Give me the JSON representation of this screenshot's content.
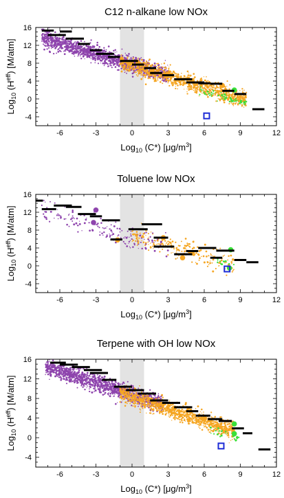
{
  "chart_data": [
    {
      "type": "scatter",
      "title": "C12 n-alkane low NOx",
      "xlabel": "Log10 (C*) [μg/m3]",
      "ylabel": "Log10 (Heff) [M/atm]",
      "xlim": [
        -8,
        12
      ],
      "ylim": [
        -6,
        16
      ],
      "xticks": [
        -6,
        -3,
        0,
        3,
        6,
        9,
        12
      ],
      "yticks": [
        -4,
        0,
        4,
        8,
        12,
        16
      ],
      "shaded_band": [
        -1,
        1
      ],
      "colors": {
        "purple": "#8e44ad",
        "orange": "#f5a623",
        "green": "#39e039",
        "black": "#000000",
        "marker": "#1c2bd6",
        "band": "#e3e3e3"
      },
      "clouds": [
        {
          "color": "purple",
          "count": 1500,
          "seed": 11,
          "x_range": [
            -7.5,
            3
          ],
          "y_at_x0": 7.6,
          "slope": -0.82,
          "spread": 1.6
        },
        {
          "color": "orange",
          "count": 1100,
          "seed": 12,
          "x_range": [
            -1,
            9.5
          ],
          "y_at_x0": 7.5,
          "slope": -0.82,
          "spread": 1.7
        },
        {
          "color": "green",
          "count": 70,
          "seed": 13,
          "x_range": [
            5.5,
            9.5
          ],
          "y_at_x0": 6.8,
          "slope": -0.85,
          "spread": 0.9
        }
      ],
      "large_points": [
        {
          "x": -2,
          "y": 9.5,
          "color": "purple"
        },
        {
          "x": 0.5,
          "y": 8,
          "color": "orange"
        },
        {
          "x": 3,
          "y": 5.5,
          "color": "orange"
        },
        {
          "x": 5,
          "y": 4,
          "color": "orange"
        },
        {
          "x": 7.5,
          "y": 3,
          "color": "orange"
        },
        {
          "x": 8.5,
          "y": 2,
          "color": "green"
        }
      ],
      "black_steps": [
        {
          "x0": -7.5,
          "x1": -6.5,
          "y": 15.3
        },
        {
          "x0": -7,
          "x1": -5.5,
          "y": 14.3
        },
        {
          "x0": -6,
          "x1": -5,
          "y": 15.1
        },
        {
          "x0": -5.5,
          "x1": -4,
          "y": 13.5
        },
        {
          "x0": -4.5,
          "x1": -3.5,
          "y": 12.3
        },
        {
          "x0": -3.5,
          "x1": -2.5,
          "y": 10.9
        },
        {
          "x0": -3,
          "x1": -1.5,
          "y": 10.1
        },
        {
          "x0": -2,
          "x1": -1,
          "y": 9.4
        },
        {
          "x0": -1,
          "x1": 0.5,
          "y": 8.5
        },
        {
          "x0": 0,
          "x1": 1,
          "y": 7.7
        },
        {
          "x0": 1,
          "x1": 2,
          "y": 6.9
        },
        {
          "x0": 1.5,
          "x1": 2.5,
          "y": 5.8
        },
        {
          "x0": 2.5,
          "x1": 3.5,
          "y": 5.3
        },
        {
          "x0": 3.5,
          "x1": 5,
          "y": 4.4
        },
        {
          "x0": 4.5,
          "x1": 6,
          "y": 3.7
        },
        {
          "x0": 5.5,
          "x1": 6.5,
          "y": 3.5
        },
        {
          "x0": 6.5,
          "x1": 7.5,
          "y": 3.4
        },
        {
          "x0": 7.5,
          "x1": 8.5,
          "y": 1.8
        },
        {
          "x0": 8.5,
          "x1": 9.5,
          "y": 1.1
        },
        {
          "x0": 10,
          "x1": 11,
          "y": -2.3
        }
      ],
      "square_marker": {
        "x": 6.2,
        "y": -3.8
      }
    },
    {
      "type": "scatter",
      "title": "Toluene low NOx",
      "xlabel": "Log10 (C*) [μg/m3]",
      "ylabel": "Log10 (Heff) [M/atm]",
      "xlim": [
        -8,
        12
      ],
      "ylim": [
        -6,
        16
      ],
      "xticks": [
        -6,
        -3,
        0,
        3,
        6,
        9,
        12
      ],
      "yticks": [
        -4,
        0,
        4,
        8,
        12,
        16
      ],
      "shaded_band": [
        -1,
        1
      ],
      "clouds": [
        {
          "color": "purple",
          "count": 180,
          "seed": 21,
          "x_range": [
            -7.5,
            3
          ],
          "y_at_x0": 6.5,
          "slope": -0.8,
          "spread": 2.2
        },
        {
          "color": "orange",
          "count": 220,
          "seed": 22,
          "x_range": [
            0,
            8.5
          ],
          "y_at_x0": 6.8,
          "slope": -0.8,
          "spread": 1.9
        },
        {
          "color": "green",
          "count": 12,
          "seed": 23,
          "x_range": [
            7,
            8.5
          ],
          "y_at_x0": 6.5,
          "slope": -0.75,
          "spread": 0.7
        }
      ],
      "large_points": [
        {
          "x": -3,
          "y": 12.5,
          "color": "purple"
        },
        {
          "x": -3.2,
          "y": 9.7,
          "color": "purple"
        },
        {
          "x": -1.2,
          "y": 5.8,
          "color": "orange"
        },
        {
          "x": 2.6,
          "y": 6.3,
          "color": "orange"
        },
        {
          "x": 4.2,
          "y": 1.8,
          "color": "orange"
        },
        {
          "x": 5,
          "y": 2.9,
          "color": "orange"
        },
        {
          "x": 8.2,
          "y": 3.6,
          "color": "green"
        },
        {
          "x": 8.1,
          "y": -0.5,
          "color": "green"
        }
      ],
      "black_steps": [
        {
          "x0": -8,
          "x1": -7.4,
          "y": 14.6
        },
        {
          "x0": -7.5,
          "x1": -6.3,
          "y": 12.7
        },
        {
          "x0": -6.5,
          "x1": -5,
          "y": 13.5
        },
        {
          "x0": -5.5,
          "x1": -4.2,
          "y": 13.2
        },
        {
          "x0": -4.5,
          "x1": -3,
          "y": 11.6
        },
        {
          "x0": -3.5,
          "x1": -2.5,
          "y": 11.1
        },
        {
          "x0": -2.5,
          "x1": -1,
          "y": 10.2
        },
        {
          "x0": -1.8,
          "x1": -0.8,
          "y": 5.9
        },
        {
          "x0": -0.3,
          "x1": 1.3,
          "y": 8.2
        },
        {
          "x0": 0.8,
          "x1": 2.5,
          "y": 9.3
        },
        {
          "x0": 1.8,
          "x1": 3,
          "y": 6.3
        },
        {
          "x0": 1.8,
          "x1": 3.5,
          "y": 4.3
        },
        {
          "x0": 3.5,
          "x1": 5,
          "y": 2.6
        },
        {
          "x0": 4.5,
          "x1": 5.5,
          "y": 3.3
        },
        {
          "x0": 5.5,
          "x1": 7,
          "y": 4
        },
        {
          "x0": 6.5,
          "x1": 7.5,
          "y": 1.8
        },
        {
          "x0": 7,
          "x1": 8.5,
          "y": 3.4
        },
        {
          "x0": 8.5,
          "x1": 9.5,
          "y": 1.3
        },
        {
          "x0": 9.5,
          "x1": 10.5,
          "y": 0.8
        }
      ],
      "square_marker": {
        "x": 7.9,
        "y": -0.7
      }
    },
    {
      "type": "scatter",
      "title": "Terpene with OH low NOx",
      "xlabel": "Log10 (C*) [μg/m3]",
      "ylabel": "Log10 (Heff) [M/atm]",
      "xlim": [
        -8,
        12
      ],
      "ylim": [
        -6,
        16
      ],
      "xticks": [
        -6,
        -3,
        0,
        3,
        6,
        9,
        12
      ],
      "yticks": [
        -4,
        0,
        4,
        8,
        12,
        16
      ],
      "shaded_band": [
        -1,
        1
      ],
      "clouds": [
        {
          "color": "purple",
          "count": 1400,
          "seed": 31,
          "x_range": [
            -7.2,
            2.5
          ],
          "y_at_x0": 8.8,
          "slope": -0.8,
          "spread": 1.5
        },
        {
          "color": "orange",
          "count": 1100,
          "seed": 32,
          "x_range": [
            -1,
            8.5
          ],
          "y_at_x0": 8.3,
          "slope": -0.82,
          "spread": 1.5
        },
        {
          "color": "green",
          "count": 30,
          "seed": 33,
          "x_range": [
            6.5,
            9
          ],
          "y_at_x0": 7,
          "slope": -0.8,
          "spread": 0.8
        }
      ],
      "large_points": [
        {
          "x": 3.5,
          "y": 6,
          "color": "orange"
        },
        {
          "x": 6,
          "y": 3.8,
          "color": "orange"
        },
        {
          "x": 8.5,
          "y": 0.8,
          "color": "green"
        },
        {
          "x": 8.5,
          "y": 2.8,
          "color": "green"
        }
      ],
      "black_steps": [
        {
          "x0": -6.8,
          "x1": -5.5,
          "y": 15.3
        },
        {
          "x0": -6,
          "x1": -4.5,
          "y": 14.9
        },
        {
          "x0": -5,
          "x1": -3.5,
          "y": 14.4
        },
        {
          "x0": -4,
          "x1": -2.5,
          "y": 13.8
        },
        {
          "x0": -3.5,
          "x1": -2,
          "y": 13.2
        },
        {
          "x0": -2.5,
          "x1": -1.3,
          "y": 11.8
        },
        {
          "x0": -1.5,
          "x1": 0,
          "y": 10.4
        },
        {
          "x0": -0.5,
          "x1": 1,
          "y": 9.7
        },
        {
          "x0": 0.5,
          "x1": 2,
          "y": 9
        },
        {
          "x0": 1.5,
          "x1": 3,
          "y": 7.6
        },
        {
          "x0": 2.5,
          "x1": 4,
          "y": 7.1
        },
        {
          "x0": 3.5,
          "x1": 5,
          "y": 6.2
        },
        {
          "x0": 4.5,
          "x1": 5.5,
          "y": 5.4
        },
        {
          "x0": 5.3,
          "x1": 6.5,
          "y": 4.5
        },
        {
          "x0": 6.3,
          "x1": 7.5,
          "y": 3.8
        },
        {
          "x0": 7.2,
          "x1": 8.3,
          "y": 3.4
        },
        {
          "x0": 8.3,
          "x1": 9.3,
          "y": 1.9
        },
        {
          "x0": 9.2,
          "x1": 10,
          "y": 0.9
        },
        {
          "x0": 10.5,
          "x1": 11.5,
          "y": -2.4
        }
      ],
      "square_marker": {
        "x": 7.4,
        "y": -1.7
      }
    }
  ]
}
